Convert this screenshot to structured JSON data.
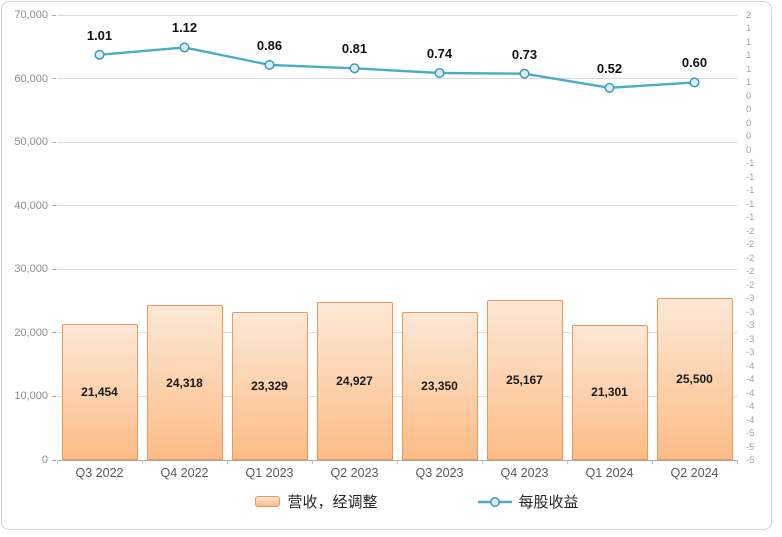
{
  "chart_data": {
    "type": "combo",
    "categories": [
      "Q3 2022",
      "Q4 2022",
      "Q1 2023",
      "Q2 2023",
      "Q3 2023",
      "Q4 2023",
      "Q1 2024",
      "Q2 2024"
    ],
    "series": [
      {
        "name": "营收，经调整",
        "type": "bar",
        "axis": "left",
        "values": [
          21454,
          24318,
          23329,
          24927,
          23350,
          25167,
          21301,
          25500
        ],
        "labels": [
          "21,454",
          "24,318",
          "23,329",
          "24,927",
          "23,350",
          "25,167",
          "21,301",
          "25,500"
        ]
      },
      {
        "name": "每股收益",
        "type": "line",
        "axis": "right",
        "values": [
          1.01,
          1.12,
          0.86,
          0.81,
          0.74,
          0.73,
          0.52,
          0.6
        ],
        "labels": [
          "1.01",
          "1.12",
          "0.86",
          "0.81",
          "0.74",
          "0.73",
          "0.52",
          "0.60"
        ]
      }
    ],
    "left_axis": {
      "min": 0,
      "max": 70000,
      "tick_labels": [
        "70,000",
        "60,000",
        "50,000",
        "40,000",
        "30,000",
        "20,000",
        "10,000",
        "0"
      ]
    },
    "right_axis": {
      "min": -5.0,
      "max": 1.6,
      "step": 0.2,
      "tick_labels": [
        "2",
        "1",
        "1",
        "1",
        "1",
        "1",
        "0",
        "0",
        "0",
        "0",
        "0",
        "-1",
        "-1",
        "-1",
        "-1",
        "-1",
        "-2",
        "-2",
        "-2",
        "-2",
        "-2",
        "-3",
        "-3",
        "-3",
        "-3",
        "-3",
        "-4",
        "-4",
        "-4",
        "-4",
        "-4",
        "-5",
        "-5",
        "-5"
      ]
    },
    "grid": true,
    "legend_position": "bottom"
  },
  "colors": {
    "bar_fill_top": "#FDE8D6",
    "bar_fill_bottom": "#FBBC86",
    "bar_border": "#E9975A",
    "line": "#4BACC6",
    "marker_fill": "#D9EEF5",
    "marker_stroke": "#3D9BB8",
    "grid": "#DCDCDC",
    "axis_text": "#8C8C8C",
    "right_axis_text": "#A3A3A3",
    "x_axis_text": "#595959",
    "data_label": "#1A1A1A",
    "frame": "#D2D2D2"
  }
}
